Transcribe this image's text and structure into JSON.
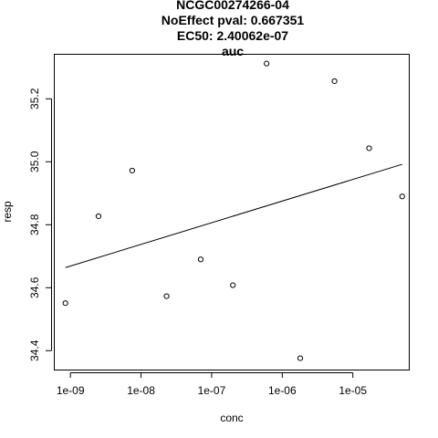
{
  "chart_data": {
    "type": "scatter",
    "title_lines": [
      "NCGC00274266-04",
      "NoEffect pval:  0.667351",
      "EC50:  2.40062e-07",
      "auc"
    ],
    "xlabel": "conc",
    "ylabel": "resp",
    "x_scale": "log10",
    "xlim": [
      6e-10,
      6.2e-05
    ],
    "ylim": [
      34.34,
      35.34
    ],
    "x_ticks": [
      1e-09,
      1e-08,
      1e-07,
      1e-06,
      1e-05
    ],
    "x_tick_labels": [
      "1e-09",
      "1e-08",
      "1e-07",
      "1e-06",
      "1e-05"
    ],
    "y_ticks": [
      34.4,
      34.6,
      34.8,
      35.0,
      35.2
    ],
    "y_tick_labels": [
      "34.4",
      "34.6",
      "34.8",
      "35.0",
      "35.2"
    ],
    "grid": false,
    "legend": "none",
    "series": [
      {
        "kind": "points",
        "x": [
          8.5e-10,
          2.5e-09,
          7.5e-09,
          2.3e-08,
          7e-08,
          2e-07,
          6e-07,
          1.8e-06,
          5.5e-06,
          1.7e-05,
          5e-05
        ],
        "y": [
          34.551,
          34.827,
          34.972,
          34.573,
          34.69,
          34.608,
          35.312,
          34.376,
          35.256,
          35.043,
          34.89
        ]
      },
      {
        "kind": "fit-line",
        "x": [
          8.5e-10,
          5e-05
        ],
        "y": [
          34.664,
          34.992
        ]
      }
    ],
    "colors": {
      "points": "#000000",
      "line": "#000000",
      "axes": "#000000"
    }
  }
}
